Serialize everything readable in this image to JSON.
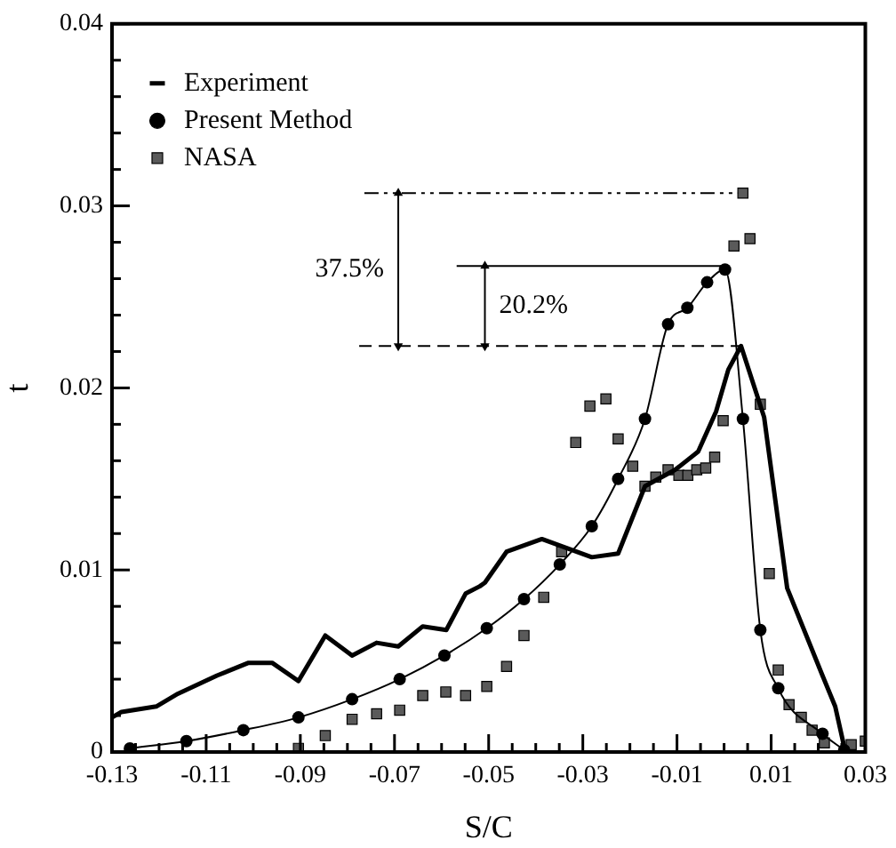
{
  "chart_data": {
    "type": "line",
    "xlabel": "S/C",
    "ylabel": "t",
    "xlim": [
      -0.13,
      0.03
    ],
    "ylim": [
      0,
      0.04
    ],
    "xticks": [
      -0.13,
      {
        "value": -0.125,
        "label": null
      },
      {
        "value": -0.12,
        "label": null
      },
      {
        "value": -0.115,
        "label": null
      },
      -0.11,
      {
        "value": -0.105,
        "label": null
      },
      {
        "value": -0.1,
        "label": null
      },
      {
        "value": -0.095,
        "label": null
      },
      -0.09,
      {
        "value": -0.085,
        "label": null
      },
      {
        "value": -0.08,
        "label": null
      },
      {
        "value": -0.075,
        "label": null
      },
      -0.07,
      {
        "value": -0.065,
        "label": null
      },
      {
        "value": -0.06,
        "label": null
      },
      {
        "value": -0.055,
        "label": null
      },
      -0.05,
      {
        "value": -0.045,
        "label": null
      },
      {
        "value": -0.04,
        "label": null
      },
      {
        "value": -0.035,
        "label": null
      },
      -0.03,
      {
        "value": -0.025,
        "label": null
      },
      {
        "value": -0.02,
        "label": null
      },
      {
        "value": -0.015,
        "label": null
      },
      -0.01,
      {
        "value": -0.005,
        "label": null
      },
      {
        "value": 0,
        "label": null
      },
      {
        "value": 0.005,
        "label": null
      },
      0.01,
      {
        "value": 0.015,
        "label": null
      },
      {
        "value": 0.02,
        "label": null
      },
      {
        "value": 0.025,
        "label": null
      },
      0.03
    ],
    "yticks": [
      0,
      {
        "value": 0.002,
        "label": null
      },
      {
        "value": 0.004,
        "label": null
      },
      {
        "value": 0.006,
        "label": null
      },
      {
        "value": 0.008,
        "label": null
      },
      0.01,
      {
        "value": 0.012,
        "label": null
      },
      {
        "value": 0.014,
        "label": null
      },
      {
        "value": 0.016,
        "label": null
      },
      {
        "value": 0.018,
        "label": null
      },
      0.02,
      {
        "value": 0.022,
        "label": null
      },
      {
        "value": 0.024,
        "label": null
      },
      {
        "value": 0.026,
        "label": null
      },
      {
        "value": 0.028,
        "label": null
      },
      0.03,
      {
        "value": 0.032,
        "label": null
      },
      {
        "value": 0.034,
        "label": null
      },
      {
        "value": 0.036,
        "label": null
      },
      {
        "value": 0.038,
        "label": null
      },
      0.04
    ],
    "grid": false,
    "legend": "top left",
    "series": [
      {
        "name": "Experiment",
        "color": "#000000",
        "marker": "none",
        "line_style": "solid",
        "x": [
          -0.13,
          -0.128,
          -0.1206,
          -0.116,
          -0.1077,
          -0.101,
          -0.096,
          -0.0904,
          -0.0847,
          -0.079,
          -0.0738,
          -0.0692,
          -0.064,
          -0.059,
          -0.0549,
          -0.0519,
          -0.0508,
          -0.0462,
          -0.0387,
          -0.0281,
          -0.0225,
          -0.0168,
          -0.0104,
          -0.0055,
          -0.0017,
          0.0009,
          0.0036,
          0.0085,
          0.0134,
          0.0209,
          0.0236,
          0.0255
        ],
        "values": [
          0.0019,
          0.0022,
          0.0025,
          0.0032,
          0.0042,
          0.0049,
          0.0049,
          0.0039,
          0.0064,
          0.0053,
          0.006,
          0.0058,
          0.0069,
          0.0067,
          0.0087,
          0.0091,
          0.0093,
          0.011,
          0.0117,
          0.0107,
          0.0109,
          0.0146,
          0.0155,
          0.0165,
          0.0187,
          0.021,
          0.0223,
          0.0184,
          0.009,
          0.0042,
          0.0025,
          0.0003
        ]
      },
      {
        "name": "Present Method",
        "color": "#000000",
        "marker": "circle",
        "line_style": "solid",
        "x": [
          -0.1262,
          -0.1142,
          -0.1021,
          -0.0904,
          -0.079,
          -0.0689,
          -0.0594,
          -0.0504,
          -0.0425,
          -0.0349,
          -0.0281,
          -0.0225,
          -0.0168,
          -0.0119,
          -0.0078,
          -0.0036,
          0.0002,
          0.004,
          0.0077,
          0.0115,
          0.0209,
          0.0255
        ],
        "values": [
          0.0002,
          0.0006,
          0.0012,
          0.0019,
          0.0029,
          0.004,
          0.0053,
          0.0068,
          0.0084,
          0.0103,
          0.0124,
          0.015,
          0.0183,
          0.0235,
          0.0244,
          0.0258,
          0.0265,
          0.0183,
          0.0067,
          0.0035,
          0.001,
          0.0001
        ]
      },
      {
        "name": "NASA",
        "type": "scatter",
        "color": "#5a5a5a",
        "marker": "square",
        "x": [
          -0.0904,
          -0.0847,
          -0.079,
          -0.0738,
          -0.0689,
          -0.064,
          -0.0591,
          -0.0549,
          -0.0504,
          -0.0462,
          -0.0425,
          -0.0383,
          -0.0345,
          -0.0315,
          -0.0285,
          -0.0251,
          -0.0225,
          -0.0194,
          -0.0168,
          -0.0145,
          -0.0119,
          -0.0096,
          -0.0077,
          -0.0058,
          -0.0039,
          -0.002,
          -0.0002,
          0.0021,
          0.004,
          0.0055,
          0.0077,
          0.0096,
          0.0115,
          0.0138,
          0.0164,
          0.0187,
          0.0213,
          0.027,
          0.03
        ],
        "values": [
          0.0002,
          0.0009,
          0.0018,
          0.0021,
          0.0023,
          0.0031,
          0.0033,
          0.0031,
          0.0036,
          0.0047,
          0.0064,
          0.0085,
          0.011,
          0.017,
          0.019,
          0.0194,
          0.0172,
          0.0157,
          0.0146,
          0.0151,
          0.0155,
          0.0152,
          0.0152,
          0.0155,
          0.0156,
          0.0162,
          0.0182,
          0.0278,
          0.0307,
          0.0282,
          0.0191,
          0.0098,
          0.0045,
          0.0026,
          0.0019,
          0.0012,
          0.0005,
          0.0004,
          0.0006
        ]
      },
      {
        "color": "#000000",
        "marker": "none",
        "line_style": "dotted",
        "x": [
          -0.0764,
          0.004
        ],
        "values": [
          0.0307,
          0.0307
        ]
      },
      {
        "color": "#000000",
        "marker": "none",
        "line_style": "solid",
        "x": [
          -0.0568,
          0.0002
        ],
        "values": [
          0.0267,
          0.0267
        ]
      },
      {
        "color": "#000000",
        "marker": "none",
        "line_style": "dashed",
        "x": [
          -0.0775,
          0.004
        ],
        "values": [
          0.0223,
          0.0223
        ]
      },
      {
        "color": "#000000",
        "marker": "triangle",
        "line_style": "solid",
        "x": [
          -0.0692,
          -0.0692
        ],
        "values": [
          0.0307,
          0.0223
        ]
      },
      {
        "color": "#000000",
        "marker": "triangle",
        "line_style": "solid",
        "x": [
          -0.0508,
          -0.0508
        ],
        "values": [
          0.0267,
          0.0223
        ]
      }
    ],
    "annotations": [
      "37.5%",
      "20.2%"
    ]
  }
}
